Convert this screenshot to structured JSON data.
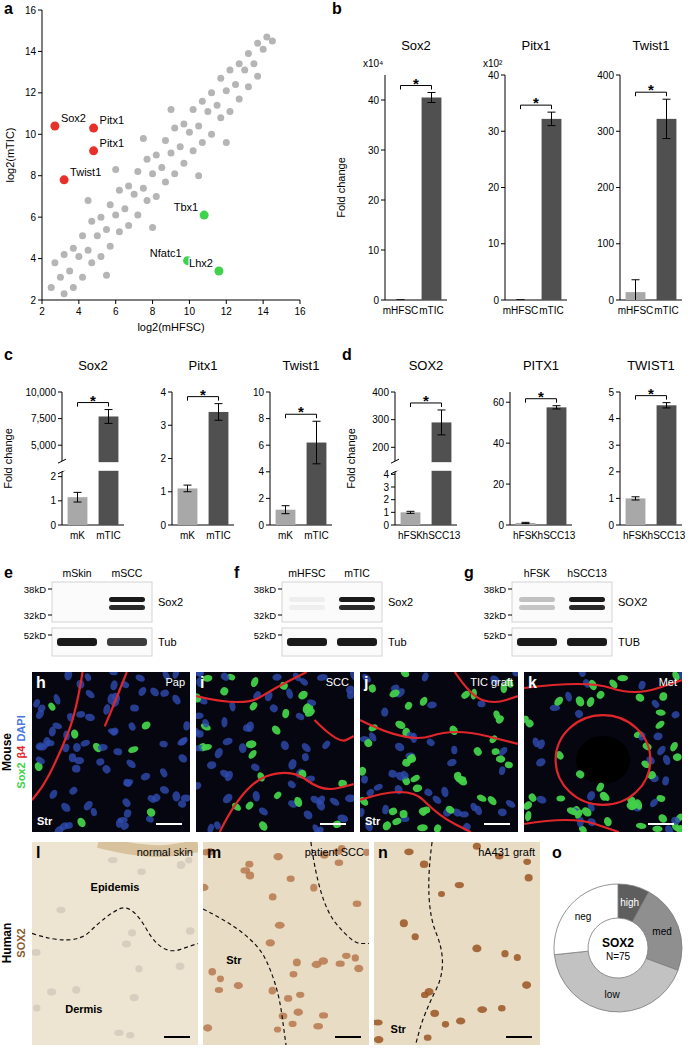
{
  "chart_data": [
    {
      "panel": "a",
      "type": "scatter",
      "x_label": "log2(mHFSC)",
      "y_label": "log2(mTIC)",
      "xlim": [
        2,
        16
      ],
      "ylim": [
        2,
        16
      ],
      "xticks": [
        2,
        4,
        6,
        8,
        10,
        12,
        14,
        16
      ],
      "yticks": [
        2,
        4,
        6,
        8,
        10,
        12,
        14,
        16
      ],
      "grid": false,
      "series": [
        {
          "color": "#b5b5b5",
          "marker": "circle",
          "x": [
            2.5,
            3,
            3.5,
            4,
            4.5,
            5,
            5.5,
            6,
            6.5,
            7,
            7.5,
            8,
            8.5,
            9,
            9.5,
            10,
            10.5,
            11,
            11.5,
            12,
            12.5,
            13,
            13.5,
            14,
            14.5,
            2.7,
            3.2,
            3.7,
            4.2,
            4.7,
            5.2,
            5.7,
            6.2,
            6.7,
            7.2,
            7.7,
            8.2,
            8.7,
            9.2,
            9.7,
            10.2,
            10.7,
            11.2,
            11.7,
            12.2,
            12.7,
            13.2,
            13.7,
            14.2,
            3.2,
            3.7,
            4.2,
            4.7,
            5.2,
            5.7,
            6.2,
            6.7,
            7.2,
            7.7,
            8.2,
            8.7,
            9.2,
            9.7,
            10.2,
            10.7,
            11.2,
            11.7,
            12.2,
            12.7,
            13.2,
            13.7,
            4.5,
            6,
            7.5,
            9,
            5.5,
            8,
            10.5,
            12
          ],
          "values": [
            2.6,
            3.1,
            3.4,
            4.1,
            4.4,
            5.1,
            5.4,
            6.1,
            6.4,
            7.1,
            7.4,
            8.1,
            8.4,
            9.1,
            9.4,
            10.1,
            10.4,
            11.1,
            11.4,
            12.1,
            12.4,
            13.1,
            13.4,
            14.1,
            14.5,
            3.8,
            4.2,
            4.5,
            5.1,
            5.8,
            6.0,
            6.6,
            7.3,
            7.5,
            8.2,
            8.8,
            9.0,
            9.7,
            10.3,
            10.5,
            11.2,
            11.6,
            12.0,
            12.7,
            13.1,
            13.4,
            13.9,
            14.4,
            14.7,
            2.3,
            2.6,
            3.1,
            3.8,
            4.1,
            4.6,
            5.3,
            5.6,
            6.1,
            6.8,
            7.0,
            7.7,
            8.1,
            8.6,
            9.2,
            9.6,
            10.0,
            10.8,
            11.1,
            11.7,
            12.3,
            12.8,
            6.8,
            8.3,
            9.8,
            11.2,
            3.2,
            5.5,
            8.0,
            9.6
          ]
        },
        {
          "color": "#e8302a",
          "marker": "circle",
          "x": [
            2.7,
            4.8,
            4.8,
            3.2
          ],
          "values": [
            10.4,
            10.3,
            9.2,
            7.8
          ],
          "labels": [
            "Sox2",
            "Pitx1",
            "Pitx1",
            "Twist1"
          ]
        },
        {
          "color": "#3fd24a",
          "marker": "circle",
          "x": [
            10.8,
            9.9,
            11.6
          ],
          "values": [
            6.1,
            3.9,
            3.4
          ],
          "labels": [
            "Tbx1",
            "Nfatc1",
            "Lhx2"
          ]
        }
      ]
    },
    {
      "panel": "b",
      "type": "bar",
      "title": "Sox2",
      "y_label": "Fold change",
      "scale_label": "x10⁴",
      "categories": [
        "mHFSC",
        "mTIC"
      ],
      "values": [
        0.001,
        40.5
      ],
      "errors": [
        0,
        1
      ],
      "colors": [
        "#a8a8a8",
        "#505050"
      ],
      "ylim": [
        0,
        45
      ],
      "yticks": [
        0,
        10,
        20,
        30,
        40
      ],
      "significance": "*",
      "grid": false
    },
    {
      "type": "bar",
      "title": "Pitx1",
      "scale_label": "x10²",
      "categories": [
        "mHFSC",
        "mTIC"
      ],
      "values": [
        0.01,
        32.2
      ],
      "errors": [
        0,
        1.2
      ],
      "colors": [
        "#a8a8a8",
        "#505050"
      ],
      "ylim": [
        0,
        40
      ],
      "yticks": [
        0,
        10,
        20,
        30,
        40
      ],
      "significance": "*",
      "grid": false
    },
    {
      "type": "bar",
      "title": "Twist1",
      "categories": [
        "mHFSC",
        "mTIC"
      ],
      "values": [
        14,
        322
      ],
      "errors": [
        22,
        35
      ],
      "colors": [
        "#a8a8a8",
        "#505050"
      ],
      "ylim": [
        0,
        400
      ],
      "yticks": [
        0,
        100,
        200,
        300,
        400
      ],
      "significance": "*",
      "grid": false
    },
    {
      "panel": "c",
      "type": "bar",
      "title": "Sox2",
      "y_label": "Fold change",
      "categories": [
        "mK",
        "mTIC"
      ],
      "values": [
        1.15,
        7700
      ],
      "errors": [
        0.2,
        650
      ],
      "colors": [
        "#a8a8a8",
        "#505050"
      ],
      "ylim": [
        0,
        10000
      ],
      "ybreak": [
        2.2,
        3500
      ],
      "yticks": [
        0,
        1,
        2,
        {
          "value": 5000,
          "label": "5,000"
        },
        {
          "value": 7500,
          "label": "7,500"
        },
        {
          "value": 10000,
          "label": "10,000"
        }
      ],
      "significance": "*",
      "grid": false
    },
    {
      "type": "bar",
      "title": "Pitx1",
      "categories": [
        "mK",
        "mTIC"
      ],
      "values": [
        1.1,
        3.4
      ],
      "errors": [
        0.1,
        0.25
      ],
      "colors": [
        "#a8a8a8",
        "#505050"
      ],
      "ylim": [
        0,
        4
      ],
      "yticks": [
        0,
        1,
        2,
        3,
        4
      ],
      "significance": "*",
      "grid": false
    },
    {
      "type": "bar",
      "title": "Twist1",
      "categories": [
        "mK",
        "mTIC"
      ],
      "values": [
        1.15,
        6.2
      ],
      "errors": [
        0.3,
        1.6
      ],
      "colors": [
        "#a8a8a8",
        "#505050"
      ],
      "ylim": [
        0,
        10
      ],
      "yticks": [
        0,
        2,
        4,
        6,
        8,
        10
      ],
      "significance": "*",
      "grid": false
    },
    {
      "panel": "d",
      "type": "bar",
      "title": "SOX2",
      "y_label": "Fold change",
      "categories": [
        "hFSK",
        "hSCC13"
      ],
      "values": [
        1.0,
        290
      ],
      "errors": [
        0.08,
        45
      ],
      "colors": [
        "#a8a8a8",
        "#505050"
      ],
      "ylim": [
        0,
        400
      ],
      "ybreak": [
        4.2,
        150
      ],
      "yticks": [
        0,
        1,
        2,
        3,
        4,
        200,
        300,
        400
      ],
      "significance": "*",
      "grid": false
    },
    {
      "type": "bar",
      "title": "PITX1",
      "categories": [
        "hFSK",
        "hSCC13"
      ],
      "values": [
        1.0,
        57.5
      ],
      "errors": [
        0.3,
        0.8
      ],
      "colors": [
        "#a8a8a8",
        "#505050"
      ],
      "ylim": [
        0,
        65
      ],
      "yticks": [
        0,
        20,
        40,
        60
      ],
      "significance": "*",
      "grid": false
    },
    {
      "type": "bar",
      "title": "TWIST1",
      "categories": [
        "hFSK",
        "hSCC13"
      ],
      "values": [
        1.0,
        4.5
      ],
      "errors": [
        0.06,
        0.1
      ],
      "colors": [
        "#a8a8a8",
        "#505050"
      ],
      "ylim": [
        0,
        5
      ],
      "yticks": [
        0,
        1,
        2,
        3,
        4,
        5
      ],
      "significance": "*",
      "grid": false
    },
    {
      "panel": "o",
      "type": "pie",
      "title": "SOX2",
      "subtitle": "N=75",
      "categories": [
        "high",
        "med",
        "low",
        "neg"
      ],
      "values": [
        6,
        17,
        32,
        20
      ],
      "colors": [
        "#5e5e5e",
        "#8f8f8f",
        "#c2c2c2",
        "#ffffff"
      ]
    }
  ],
  "blots": [
    {
      "panel": "e",
      "lanes": [
        "mSkin",
        "mSCC"
      ],
      "protein_top": "Sox2",
      "protein_bottom": "Tub",
      "markers_top": [
        "38kD",
        "32kD"
      ],
      "markers_bottom": [
        "52kD"
      ],
      "band_top": [
        0,
        1
      ],
      "band_bottom": [
        1,
        0.85
      ]
    },
    {
      "panel": "f",
      "lanes": [
        "mHFSC",
        "mTIC"
      ],
      "protein_top": "Sox2",
      "protein_bottom": "Tub",
      "markers_top": [
        "38kD",
        "32kD"
      ],
      "markers_bottom": [
        "52kD"
      ],
      "band_top": [
        0.05,
        1
      ],
      "band_bottom": [
        1,
        1
      ]
    },
    {
      "panel": "g",
      "lanes": [
        "hFSK",
        "hSCC13"
      ],
      "protein_top": "SOX2",
      "protein_bottom": "TUB",
      "markers_top": [
        "38kD",
        "32kD"
      ],
      "markers_bottom": [
        "52kD"
      ],
      "band_top": [
        0.25,
        1
      ],
      "band_bottom": [
        1,
        1
      ]
    }
  ],
  "mouse_micrographs": {
    "row_label": "Mouse",
    "stain_labels": [
      {
        "text": "Sox2",
        "color": "#3fd24a"
      },
      {
        "text": "β4",
        "color": "#e0262b"
      },
      {
        "text": "DAPI",
        "color": "#4a78e0"
      }
    ],
    "panels": [
      {
        "panel": "h",
        "label": "Pap",
        "stroma": "Str"
      },
      {
        "panel": "i",
        "label": "SCC"
      },
      {
        "panel": "j",
        "label": "TIC graft",
        "stroma": "Str"
      },
      {
        "panel": "k",
        "label": "Met"
      }
    ]
  },
  "human_micrographs": {
    "row_label": "Human",
    "stain_label": "SOX2",
    "stain_color": "#8b5a2b",
    "panels": [
      {
        "panel": "l",
        "label": "normal skin",
        "regions": [
          "Epidemis",
          "Dermis"
        ]
      },
      {
        "panel": "m",
        "label": "patient SCC",
        "regions": [
          "Str"
        ]
      },
      {
        "panel": "n",
        "label": "hA431 graft",
        "regions": [
          "Str"
        ]
      }
    ]
  }
}
